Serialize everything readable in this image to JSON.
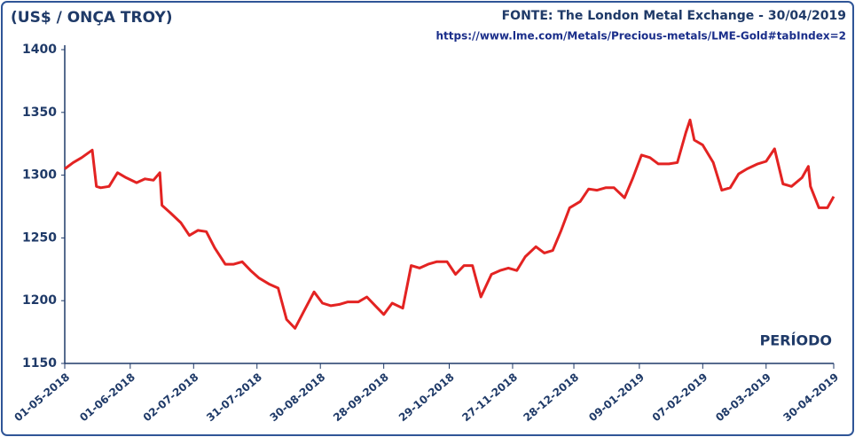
{
  "chart_data": {
    "type": "line",
    "title": "(US$ / ONÇA TROY)",
    "source": "FONTE: The London Metal Exchange - 30/04/2019",
    "url": "https://www.lme.com/Metals/Precious-metals/LME-Gold#tabIndex=2",
    "x_label": "PERÍODO",
    "color": "#e32322",
    "x": [
      0,
      4,
      8,
      13,
      15,
      17,
      21,
      25,
      29,
      34,
      38,
      42,
      45,
      46,
      50,
      55,
      59,
      63,
      67,
      71,
      76,
      80,
      84,
      88,
      92,
      97,
      101,
      105,
      109,
      113,
      118,
      122,
      126,
      130,
      134,
      139,
      143,
      147,
      151,
      155,
      160,
      164,
      168,
      172,
      176,
      181,
      185,
      189,
      193,
      197,
      202,
      206,
      210,
      214,
      218,
      223,
      227,
      231,
      235,
      239,
      244,
      248,
      252,
      256,
      260,
      265,
      269,
      273,
      277,
      281,
      286,
      290,
      294,
      296,
      298,
      302,
      307,
      311,
      315,
      319,
      323,
      328,
      332,
      336,
      340,
      344,
      349,
      352,
      353,
      357,
      361,
      364
    ],
    "values": [
      1305,
      1310,
      1314,
      1320,
      1291,
      1290,
      1291,
      1302,
      1298,
      1294,
      1297,
      1296,
      1302,
      1276,
      1270,
      1262,
      1252,
      1256,
      1255,
      1242,
      1229,
      1229,
      1231,
      1224,
      1218,
      1213,
      1210,
      1185,
      1178,
      1191,
      1207,
      1198,
      1196,
      1197,
      1199,
      1199,
      1203,
      1196,
      1189,
      1198,
      1194,
      1228,
      1226,
      1229,
      1231,
      1231,
      1221,
      1228,
      1228,
      1203,
      1221,
      1224,
      1226,
      1224,
      1235,
      1243,
      1238,
      1240,
      1256,
      1274,
      1279,
      1289,
      1288,
      1290,
      1290,
      1282,
      1298,
      1316,
      1314,
      1309,
      1309,
      1310,
      1334,
      1344,
      1328,
      1324,
      1310,
      1288,
      1290,
      1301,
      1305,
      1309,
      1311,
      1321,
      1293,
      1291,
      1298,
      1307,
      1291,
      1274,
      1274,
      1283
    ],
    "xlim": [
      0,
      364
    ],
    "xticks": [
      {
        "value": 0,
        "label": "01-05-2018"
      },
      {
        "value": 31,
        "label": "01-06-2018"
      },
      {
        "value": 61,
        "label": "02-07-2018"
      },
      {
        "value": 91,
        "label": "31-07-2018"
      },
      {
        "value": 121,
        "label": "30-08-2018"
      },
      {
        "value": 151,
        "label": "28-09-2018"
      },
      {
        "value": 182,
        "label": "29-10-2018"
      },
      {
        "value": 212,
        "label": "27-11-2018"
      },
      {
        "value": 241,
        "label": "28-12-2018"
      },
      {
        "value": 272,
        "label": "09-01-2019"
      },
      {
        "value": 302,
        "label": "07-02-2019"
      },
      {
        "value": 332,
        "label": "08-03-2019"
      },
      {
        "value": 364,
        "label": "30-04-2019"
      }
    ],
    "ylim": [
      1150,
      1400
    ],
    "yticks": [
      1150,
      1200,
      1250,
      1300,
      1350,
      1400
    ]
  }
}
